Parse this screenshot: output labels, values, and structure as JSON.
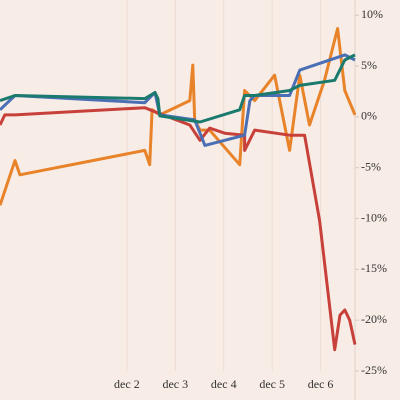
{
  "chart_data": {
    "type": "line",
    "xlim": [
      -0.62,
      6.71
    ],
    "xticks": [
      {
        "value": 2,
        "label": "dec 2"
      },
      {
        "value": 3,
        "label": "dec 3"
      },
      {
        "value": 4,
        "label": "dec 4"
      },
      {
        "value": 5,
        "label": "dec 5"
      },
      {
        "value": 6,
        "label": "dec 6"
      }
    ],
    "ylim": [
      -25,
      11.5
    ],
    "yticks": [
      {
        "value": 10,
        "label": "10%"
      },
      {
        "value": 5,
        "label": "5%"
      },
      {
        "value": 0,
        "label": "0%"
      },
      {
        "value": -5,
        "label": "-5%"
      },
      {
        "value": -10,
        "label": "-10%"
      },
      {
        "value": -15,
        "label": "-15%"
      },
      {
        "value": -20,
        "label": "-20%"
      },
      {
        "value": -25,
        "label": "-25%"
      }
    ],
    "grid": true,
    "series": [
      {
        "color": "#e8832a",
        "x": [
          -0.62,
          -0.41,
          -0.31,
          -0.21,
          2.37,
          2.47,
          2.52,
          2.68,
          3.3,
          3.36,
          3.4,
          3.51,
          3.71,
          4.33,
          4.43,
          4.64,
          5.05,
          5.36,
          5.57,
          5.77,
          6.08,
          6.35,
          6.5,
          6.71
        ],
        "values": [
          -8.7,
          -5.7,
          -4.3,
          -5.7,
          -3.3,
          -4.7,
          0.7,
          0.2,
          1.6,
          5.1,
          -0.3,
          -1.3,
          -1.3,
          -4.7,
          2.6,
          1.6,
          4.1,
          -3.3,
          4.1,
          -0.8,
          3.6,
          8.7,
          2.6,
          0.2
        ]
      },
      {
        "color": "#c8403a",
        "x": [
          -0.62,
          -0.52,
          -0.31,
          2.37,
          2.58,
          3.3,
          3.51,
          3.71,
          4.02,
          4.43,
          4.43,
          4.64,
          5.36,
          5.67,
          5.98,
          6.29,
          6.4,
          6.5,
          6.6,
          6.71
        ],
        "values": [
          -0.8,
          0.2,
          0.2,
          0.9,
          0.5,
          -0.8,
          -2.3,
          -1.1,
          -1.6,
          -1.8,
          -3.3,
          -1.3,
          -1.8,
          -1.8,
          -10.2,
          -22.9,
          -19.5,
          -19.0,
          -20.0,
          -22.4
        ]
      },
      {
        "color": "#4a6fb5",
        "x": [
          -0.62,
          -0.31,
          2.37,
          2.58,
          2.68,
          3.4,
          3.61,
          4.43,
          4.54,
          4.64,
          5.36,
          5.57,
          6.5,
          6.71
        ],
        "values": [
          0.7,
          2.1,
          1.4,
          2.4,
          0.2,
          -0.3,
          -2.8,
          -1.8,
          1.6,
          2.1,
          2.1,
          4.6,
          6.1,
          5.6
        ]
      },
      {
        "color": "#1a7a6e",
        "x": [
          -0.62,
          -0.31,
          2.37,
          2.58,
          2.64,
          2.68,
          3.51,
          4.33,
          4.43,
          4.64,
          5.36,
          5.57,
          6.29,
          6.5,
          6.71
        ],
        "values": [
          1.6,
          2.1,
          1.8,
          2.4,
          1.8,
          0.1,
          -0.5,
          0.7,
          2.1,
          2.1,
          2.6,
          3.1,
          3.6,
          5.6,
          6.1
        ]
      }
    ]
  }
}
